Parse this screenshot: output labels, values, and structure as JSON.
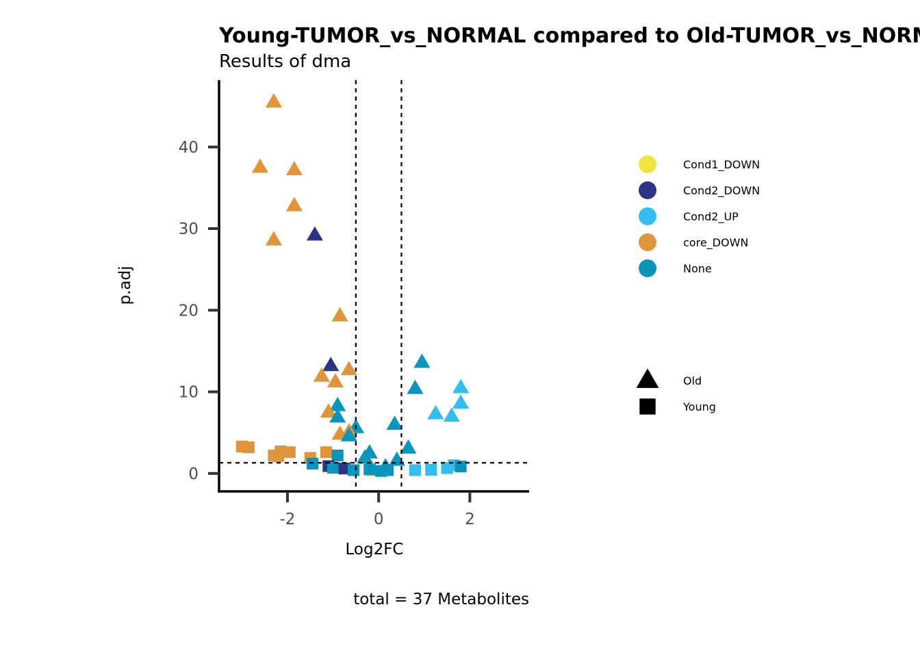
{
  "chart_data": {
    "type": "scatter",
    "title": "Young-TUMOR_vs_NORMAL compared to Old-TUMOR_vs_NORMAL",
    "subtitle": "Results of dma",
    "xlabel": "Log2FC",
    "ylabel": "p.adj",
    "caption": "total = 37 Metabolites",
    "xlim": [
      -3.5,
      3.3
    ],
    "ylim": [
      -2.2,
      48.2
    ],
    "x_ticks": [
      -2,
      0,
      2
    ],
    "x_tick_labels": [
      "-2",
      "0",
      "2"
    ],
    "y_ticks": [
      0,
      10,
      20,
      30,
      40
    ],
    "y_tick_labels": [
      "0",
      "10",
      "20",
      "30",
      "40"
    ],
    "reference_lines": {
      "x": [
        -0.5,
        0.5
      ],
      "y": [
        1.3
      ]
    },
    "grid": false,
    "legend_position": "right",
    "color_legend": [
      {
        "name": "Cond1_DOWN",
        "color": "#F0E442"
      },
      {
        "name": "Cond2_DOWN",
        "color": "#2E3483"
      },
      {
        "name": "Cond2_UP",
        "color": "#35BDEF"
      },
      {
        "name": "core_DOWN",
        "color": "#DE953D"
      },
      {
        "name": "None",
        "color": "#0C95BA"
      }
    ],
    "shape_legend": [
      {
        "name": "Old",
        "shape": "triangle"
      },
      {
        "name": "Young",
        "shape": "square"
      }
    ],
    "points": [
      {
        "x": -2.3,
        "y": 45.5,
        "group": "core_DOWN",
        "shape": "Old"
      },
      {
        "x": -2.6,
        "y": 37.5,
        "group": "core_DOWN",
        "shape": "Old"
      },
      {
        "x": -1.85,
        "y": 37.2,
        "group": "core_DOWN",
        "shape": "Old"
      },
      {
        "x": -1.85,
        "y": 32.8,
        "group": "core_DOWN",
        "shape": "Old"
      },
      {
        "x": -2.3,
        "y": 28.6,
        "group": "core_DOWN",
        "shape": "Old"
      },
      {
        "x": -1.4,
        "y": 29.2,
        "group": "Cond2_DOWN",
        "shape": "Old"
      },
      {
        "x": -0.85,
        "y": 19.3,
        "group": "core_DOWN",
        "shape": "Old"
      },
      {
        "x": -1.05,
        "y": 13.2,
        "group": "Cond2_DOWN",
        "shape": "Old"
      },
      {
        "x": -0.65,
        "y": 12.7,
        "group": "core_DOWN",
        "shape": "Old"
      },
      {
        "x": -1.25,
        "y": 11.9,
        "group": "core_DOWN",
        "shape": "Old"
      },
      {
        "x": -0.95,
        "y": 11.2,
        "group": "core_DOWN",
        "shape": "Old"
      },
      {
        "x": -0.9,
        "y": 8.3,
        "group": "None",
        "shape": "Old"
      },
      {
        "x": -1.1,
        "y": 7.5,
        "group": "core_DOWN",
        "shape": "Old"
      },
      {
        "x": -0.9,
        "y": 6.9,
        "group": "None",
        "shape": "Old"
      },
      {
        "x": -0.5,
        "y": 5.6,
        "group": "None",
        "shape": "Old"
      },
      {
        "x": -0.65,
        "y": 5.1,
        "group": "core_DOWN",
        "shape": "Old"
      },
      {
        "x": -0.85,
        "y": 4.8,
        "group": "core_DOWN",
        "shape": "Old"
      },
      {
        "x": -0.65,
        "y": 4.6,
        "group": "None",
        "shape": "Old"
      },
      {
        "x": 0.95,
        "y": 13.6,
        "group": "None",
        "shape": "Old"
      },
      {
        "x": 0.8,
        "y": 10.4,
        "group": "None",
        "shape": "Old"
      },
      {
        "x": 1.8,
        "y": 10.5,
        "group": "Cond2_UP",
        "shape": "Old"
      },
      {
        "x": 1.8,
        "y": 8.6,
        "group": "Cond2_UP",
        "shape": "Old"
      },
      {
        "x": 1.25,
        "y": 7.3,
        "group": "Cond2_UP",
        "shape": "Old"
      },
      {
        "x": 1.6,
        "y": 7.0,
        "group": "Cond2_UP",
        "shape": "Old"
      },
      {
        "x": 0.35,
        "y": 6.0,
        "group": "None",
        "shape": "Old"
      },
      {
        "x": 0.65,
        "y": 3.1,
        "group": "None",
        "shape": "Old"
      },
      {
        "x": -0.2,
        "y": 2.5,
        "group": "None",
        "shape": "Old"
      },
      {
        "x": -0.3,
        "y": 1.9,
        "group": "None",
        "shape": "Old"
      },
      {
        "x": 0.4,
        "y": 1.6,
        "group": "None",
        "shape": "Old"
      },
      {
        "x": 0.15,
        "y": 0.8,
        "group": "None",
        "shape": "Old"
      },
      {
        "x": -0.1,
        "y": 0.3,
        "group": "Cond1_DOWN",
        "shape": "Old"
      },
      {
        "x": -3.0,
        "y": 3.3,
        "group": "core_DOWN",
        "shape": "Young"
      },
      {
        "x": -2.85,
        "y": 3.2,
        "group": "core_DOWN",
        "shape": "Young"
      },
      {
        "x": -2.15,
        "y": 2.7,
        "group": "core_DOWN",
        "shape": "Young"
      },
      {
        "x": -1.95,
        "y": 2.6,
        "group": "core_DOWN",
        "shape": "Young"
      },
      {
        "x": -2.3,
        "y": 2.2,
        "group": "core_DOWN",
        "shape": "Young"
      },
      {
        "x": -2.2,
        "y": 2.1,
        "group": "core_DOWN",
        "shape": "Young"
      },
      {
        "x": -1.15,
        "y": 2.6,
        "group": "core_DOWN",
        "shape": "Young"
      },
      {
        "x": -1.5,
        "y": 1.9,
        "group": "core_DOWN",
        "shape": "Young"
      },
      {
        "x": -0.9,
        "y": 2.2,
        "group": "None",
        "shape": "Young"
      },
      {
        "x": -1.45,
        "y": 1.2,
        "group": "None",
        "shape": "Young"
      },
      {
        "x": -1.1,
        "y": 0.9,
        "group": "Cond2_DOWN",
        "shape": "Young"
      },
      {
        "x": -1.0,
        "y": 0.7,
        "group": "None",
        "shape": "Young"
      },
      {
        "x": -0.75,
        "y": 0.6,
        "group": "Cond2_DOWN",
        "shape": "Young"
      },
      {
        "x": -0.55,
        "y": 0.4,
        "group": "None",
        "shape": "Young"
      },
      {
        "x": -0.2,
        "y": 0.5,
        "group": "None",
        "shape": "Young"
      },
      {
        "x": 0.05,
        "y": 0.3,
        "group": "None",
        "shape": "Young"
      },
      {
        "x": 0.2,
        "y": 0.4,
        "group": "None",
        "shape": "Young"
      },
      {
        "x": 0.8,
        "y": 0.4,
        "group": "Cond2_UP",
        "shape": "Young"
      },
      {
        "x": 1.15,
        "y": 0.45,
        "group": "Cond2_UP",
        "shape": "Young"
      },
      {
        "x": 1.5,
        "y": 0.65,
        "group": "Cond2_UP",
        "shape": "Young"
      },
      {
        "x": 1.65,
        "y": 1.0,
        "group": "Cond2_UP",
        "shape": "Young"
      },
      {
        "x": 1.8,
        "y": 0.85,
        "group": "None",
        "shape": "Young"
      }
    ]
  }
}
